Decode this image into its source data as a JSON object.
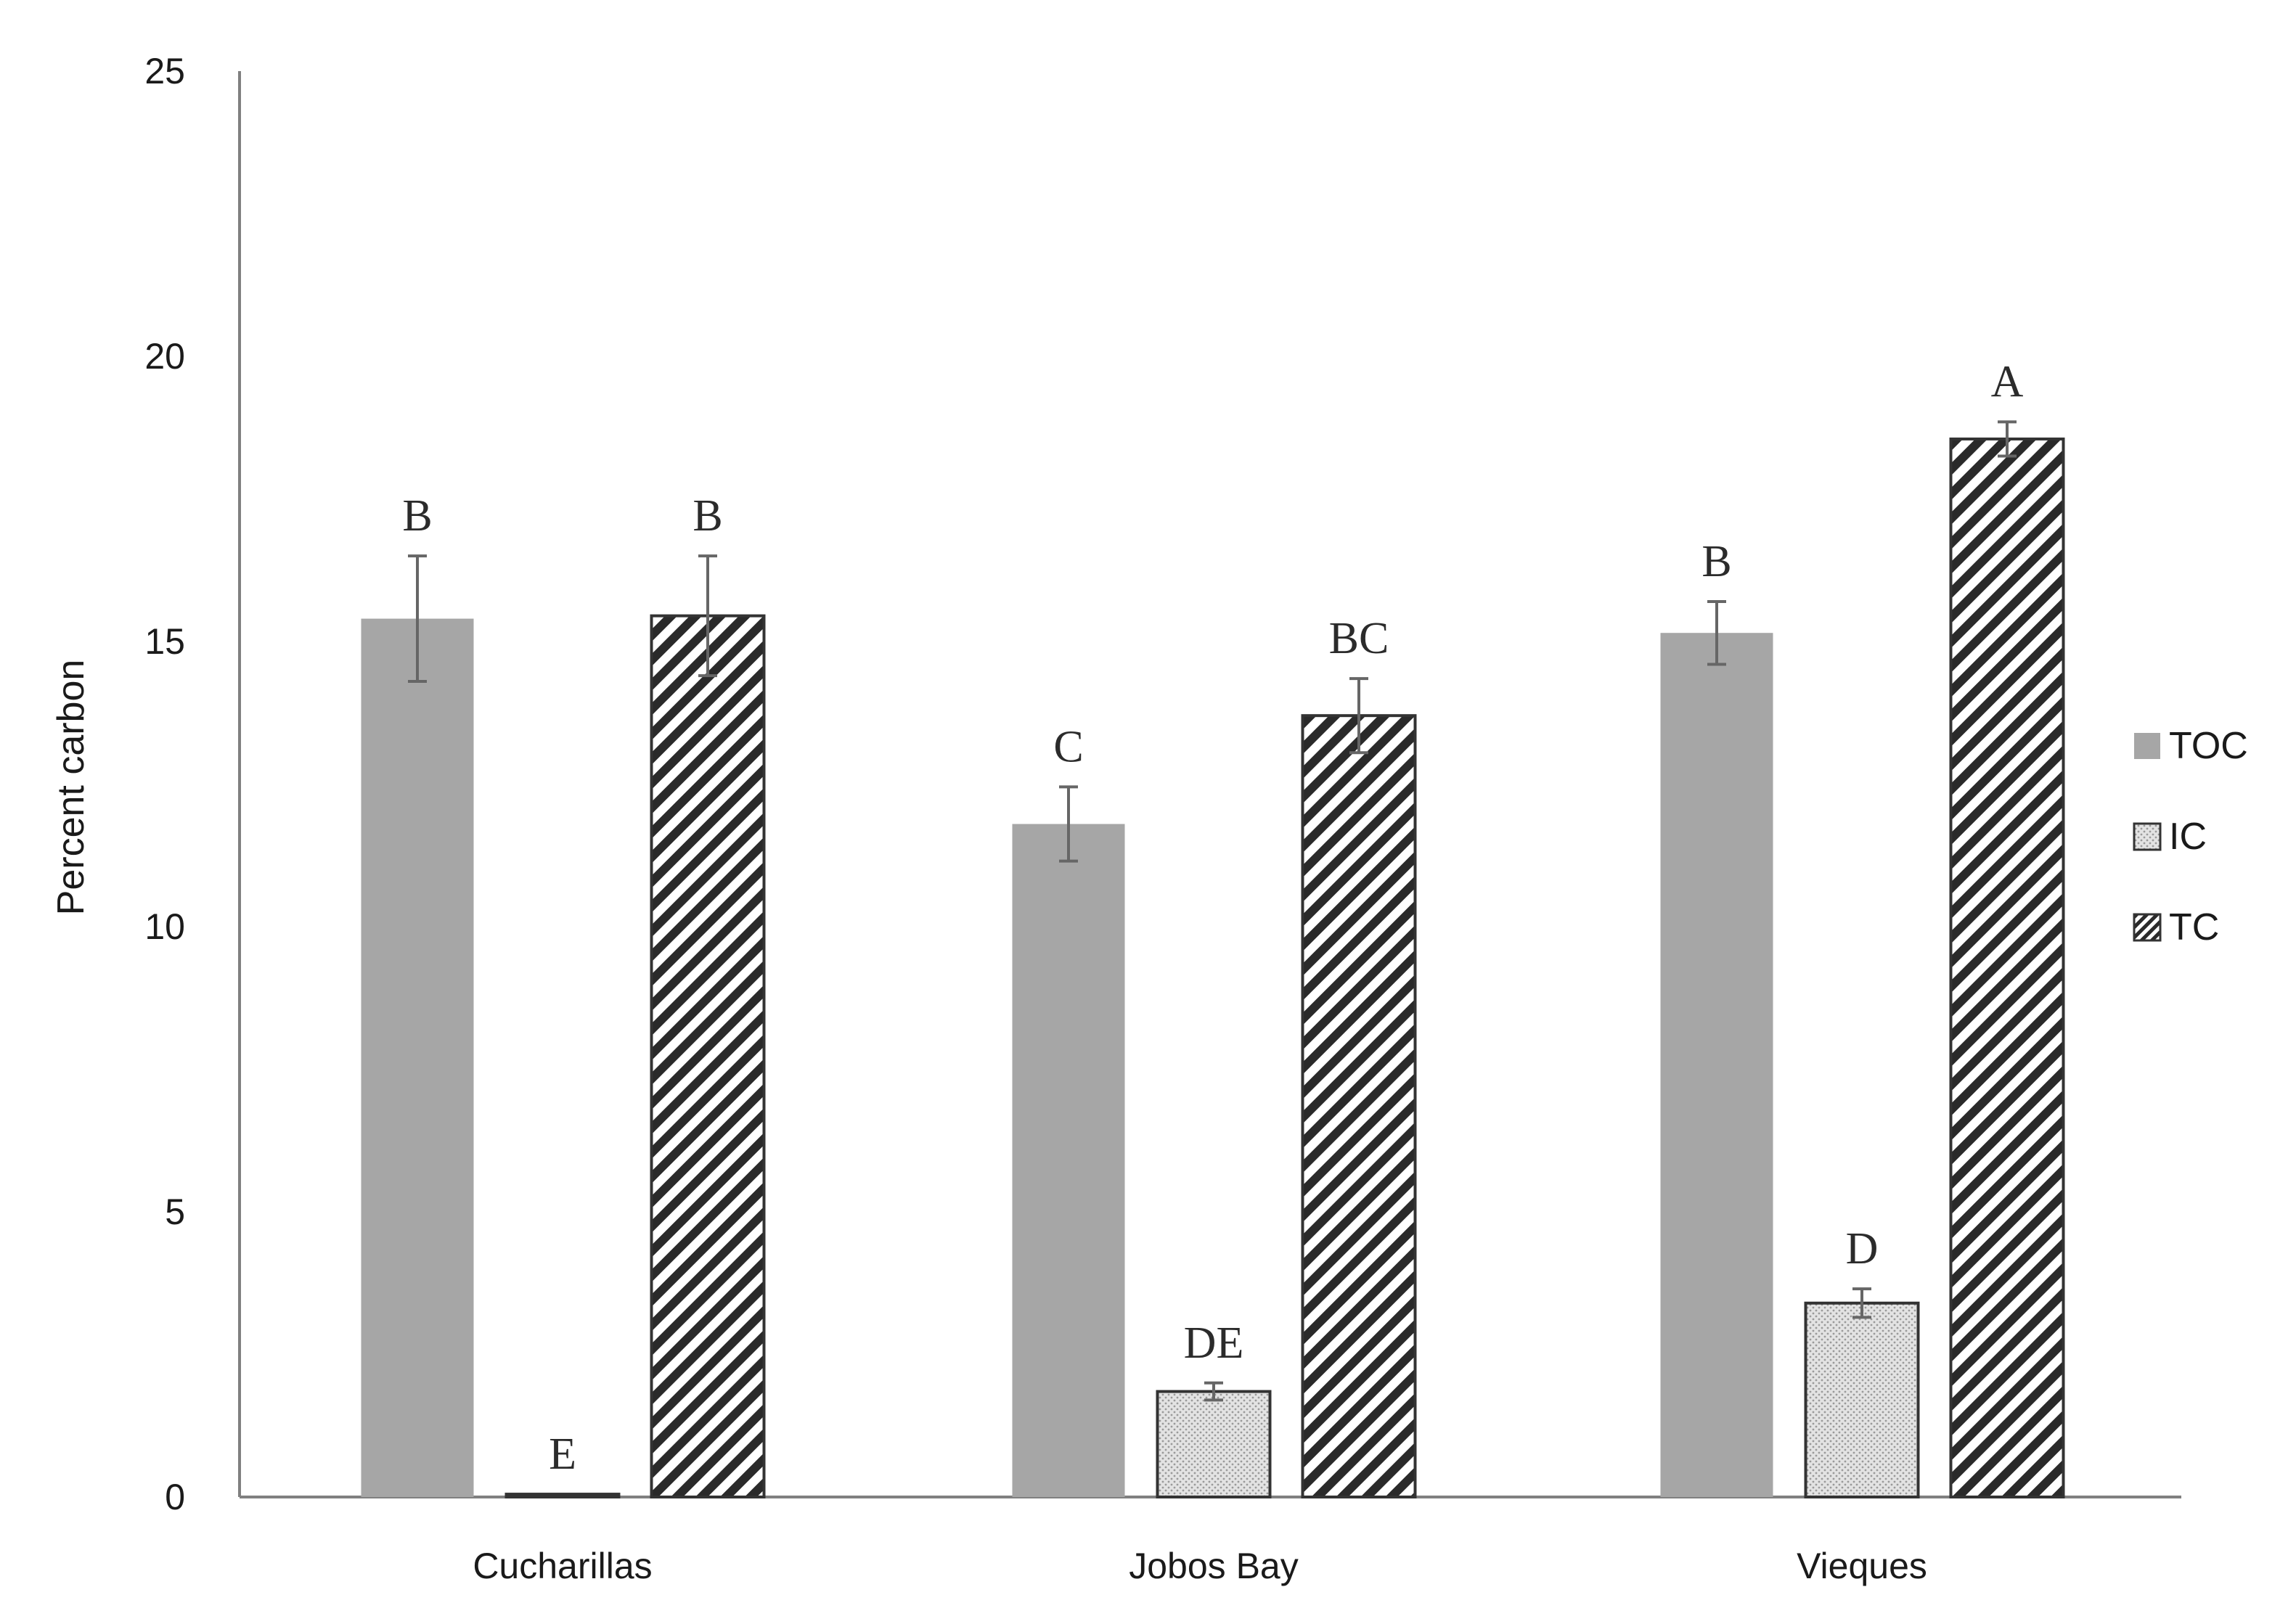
{
  "chart_data": {
    "type": "bar",
    "title": "",
    "xlabel": "",
    "ylabel": "Percent carbon",
    "ylim": [
      0,
      25
    ],
    "yticks": [
      0,
      5,
      10,
      15,
      20,
      25
    ],
    "grid": false,
    "legend_position": "right",
    "categories": [
      "Cucharillas",
      "Jobos Bay",
      "Vieques"
    ],
    "series": [
      {
        "name": "TOC",
        "key": "toc",
        "pattern": "solid",
        "color": "#a6a6a6",
        "values": [
          15.4,
          11.8,
          15.15
        ],
        "errors": [
          1.1,
          0.65,
          0.55
        ],
        "letters": [
          "B",
          "C",
          "B"
        ]
      },
      {
        "name": "IC",
        "key": "ic",
        "pattern": "dots",
        "color": "#e0e0e0",
        "values": [
          0.05,
          1.85,
          3.4
        ],
        "errors": [
          0.0,
          0.15,
          0.25
        ],
        "letters": [
          "E",
          "DE",
          "D"
        ]
      },
      {
        "name": "TC",
        "key": "tc",
        "pattern": "diagonal",
        "color": "#2a2a2a",
        "values": [
          15.45,
          13.7,
          18.55
        ],
        "errors": [
          1.05,
          0.65,
          0.3
        ],
        "letters": [
          "B",
          "BC",
          "A"
        ]
      }
    ]
  }
}
